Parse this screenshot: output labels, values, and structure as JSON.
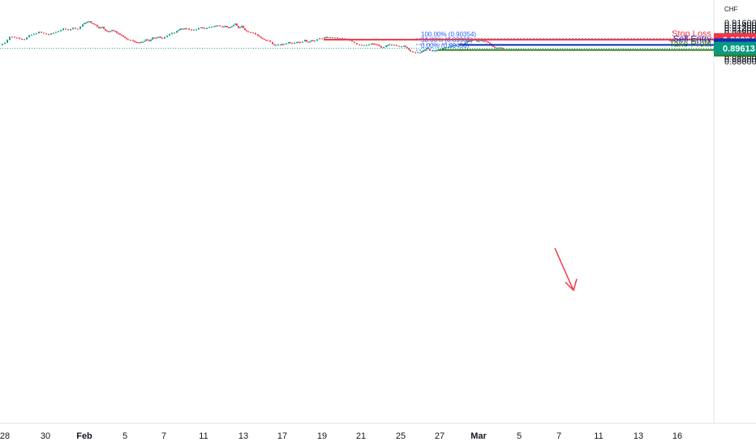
{
  "chart_data": {
    "type": "candlestick",
    "currency": "CHF",
    "ylim": [
      0.885,
      0.9175
    ],
    "xlim": [
      0,
      932
    ],
    "y_ticks": [
      "0.91600",
      "0.91400",
      "0.91200",
      "0.91000",
      "0.90800",
      "0.90600",
      "0.90400",
      "0.90200",
      "0.90000",
      "0.89800",
      "0.89400",
      "0.89200",
      "0.89000",
      "0.88800",
      "0.88600"
    ],
    "x_ticks": [
      {
        "label": "28",
        "bold": false,
        "x": 6
      },
      {
        "label": "30",
        "bold": false,
        "x": 56
      },
      {
        "label": "Feb",
        "bold": true,
        "x": 104
      },
      {
        "label": "5",
        "bold": false,
        "x": 154
      },
      {
        "label": "7",
        "bold": false,
        "x": 202
      },
      {
        "label": "11",
        "bold": false,
        "x": 251
      },
      {
        "label": "13",
        "bold": false,
        "x": 300
      },
      {
        "label": "17",
        "bold": false,
        "x": 348
      },
      {
        "label": "19",
        "bold": false,
        "x": 397
      },
      {
        "label": "21",
        "bold": false,
        "x": 445
      },
      {
        "label": "25",
        "bold": false,
        "x": 494
      },
      {
        "label": "27",
        "bold": false,
        "x": 542
      },
      {
        "label": "Mar",
        "bold": true,
        "x": 590
      },
      {
        "label": "5",
        "bold": false,
        "x": 640
      },
      {
        "label": "7",
        "bold": false,
        "x": 689
      },
      {
        "label": "11",
        "bold": false,
        "x": 738
      },
      {
        "label": "13",
        "bold": false,
        "x": 787
      },
      {
        "label": "16",
        "bold": false,
        "x": 835
      }
    ],
    "price_path": [
      [
        0,
        0.8986
      ],
      [
        6,
        0.9006
      ],
      [
        12,
        0.9052
      ],
      [
        18,
        0.9046
      ],
      [
        24,
        0.9038
      ],
      [
        30,
        0.9032
      ],
      [
        36,
        0.906
      ],
      [
        42,
        0.9072
      ],
      [
        48,
        0.9088
      ],
      [
        54,
        0.9076
      ],
      [
        60,
        0.9068
      ],
      [
        66,
        0.9082
      ],
      [
        72,
        0.9096
      ],
      [
        78,
        0.9112
      ],
      [
        84,
        0.9104
      ],
      [
        90,
        0.912
      ],
      [
        96,
        0.9112
      ],
      [
        102,
        0.9148
      ],
      [
        106,
        0.9162
      ],
      [
        110,
        0.917
      ],
      [
        114,
        0.9152
      ],
      [
        118,
        0.9142
      ],
      [
        122,
        0.9118
      ],
      [
        126,
        0.913
      ],
      [
        130,
        0.9098
      ],
      [
        134,
        0.909
      ],
      [
        138,
        0.9104
      ],
      [
        142,
        0.909
      ],
      [
        146,
        0.9074
      ],
      [
        150,
        0.906
      ],
      [
        154,
        0.904
      ],
      [
        158,
        0.9026
      ],
      [
        164,
        0.902
      ],
      [
        168,
        0.9006
      ],
      [
        172,
        0.9004
      ],
      [
        176,
        0.9012
      ],
      [
        180,
        0.9028
      ],
      [
        184,
        0.9018
      ],
      [
        188,
        0.9046
      ],
      [
        192,
        0.904
      ],
      [
        196,
        0.9052
      ],
      [
        200,
        0.904
      ],
      [
        206,
        0.906
      ],
      [
        212,
        0.9078
      ],
      [
        218,
        0.9094
      ],
      [
        222,
        0.9114
      ],
      [
        226,
        0.911
      ],
      [
        230,
        0.9116
      ],
      [
        236,
        0.9102
      ],
      [
        242,
        0.911
      ],
      [
        248,
        0.9122
      ],
      [
        252,
        0.9114
      ],
      [
        258,
        0.9126
      ],
      [
        264,
        0.9134
      ],
      [
        268,
        0.9138
      ],
      [
        274,
        0.9132
      ],
      [
        278,
        0.9134
      ],
      [
        282,
        0.9118
      ],
      [
        286,
        0.9134
      ],
      [
        290,
        0.915
      ],
      [
        294,
        0.912
      ],
      [
        298,
        0.9136
      ],
      [
        302,
        0.9104
      ],
      [
        306,
        0.9088
      ],
      [
        312,
        0.908
      ],
      [
        318,
        0.906
      ],
      [
        322,
        0.904
      ],
      [
        326,
        0.9026
      ],
      [
        330,
        0.9024
      ],
      [
        336,
        0.8994
      ],
      [
        340,
        0.8986
      ],
      [
        346,
        0.899
      ],
      [
        350,
        0.8994
      ],
      [
        356,
        0.9008
      ],
      [
        360,
        0.9002
      ],
      [
        366,
        0.9012
      ],
      [
        370,
        0.9008
      ],
      [
        376,
        0.9024
      ],
      [
        380,
        0.9006
      ],
      [
        384,
        0.9026
      ],
      [
        388,
        0.902
      ],
      [
        394,
        0.9038
      ],
      [
        400,
        0.9044
      ],
      [
        404,
        0.9048
      ],
      [
        410,
        0.9044
      ],
      [
        416,
        0.904
      ],
      [
        422,
        0.9036
      ],
      [
        428,
        0.9028
      ],
      [
        434,
        0.901
      ],
      [
        440,
        0.8994
      ],
      [
        446,
        0.8986
      ],
      [
        452,
        0.899
      ],
      [
        458,
        0.8998
      ],
      [
        462,
        0.8992
      ],
      [
        466,
        0.8986
      ],
      [
        470,
        0.8964
      ],
      [
        476,
        0.898
      ],
      [
        480,
        0.899
      ],
      [
        486,
        0.8986
      ],
      [
        492,
        0.8972
      ],
      [
        498,
        0.8978
      ],
      [
        502,
        0.8964
      ],
      [
        506,
        0.894
      ],
      [
        512,
        0.8928
      ],
      [
        518,
        0.893
      ],
      [
        522,
        0.8946
      ],
      [
        526,
        0.8962
      ],
      [
        530,
        0.8946
      ],
      [
        536,
        0.8942
      ],
      [
        540,
        0.8948
      ],
      [
        546,
        0.896
      ],
      [
        550,
        0.8968
      ],
      [
        556,
        0.8978
      ],
      [
        560,
        0.8986
      ],
      [
        566,
        0.899
      ],
      [
        572,
        0.8996
      ],
      [
        576,
        0.9018
      ],
      [
        580,
        0.9022
      ],
      [
        584,
        0.9026
      ],
      [
        588,
        0.9016
      ],
      [
        592,
        0.9022
      ],
      [
        596,
        0.902
      ],
      [
        600,
        0.9012
      ],
      [
        604,
        0.8998
      ],
      [
        608,
        0.897
      ],
      [
        612,
        0.8962
      ],
      [
        616,
        0.8966
      ],
      [
        620,
        0.896
      ]
    ],
    "current_price": 0.89613,
    "levels": [
      {
        "name": "Stop Loss",
        "price_label": "0.90284",
        "value": 0.90284,
        "color": "#f23645"
      },
      {
        "name": "Sell Entry",
        "price_label": "0.89878",
        "value": 0.89878,
        "color": "#0c2bb6"
      },
      {
        "name": "Take Profit",
        "price_label": "0.89479",
        "value": 0.89479,
        "color": "#2f7d1f"
      }
    ],
    "current_label": "0.89613",
    "current_color": "#089981",
    "fibonacci": [
      {
        "label": "100.00% (0.90354)",
        "value": 0.90354
      },
      {
        "label": "50.00% (0.89905)",
        "value": 0.89905
      },
      {
        "label": "0.00% (0.89456)",
        "value": 0.89456
      }
    ],
    "colors": {
      "up": "#089981",
      "down": "#f23645",
      "fib": "#2962ff"
    }
  }
}
